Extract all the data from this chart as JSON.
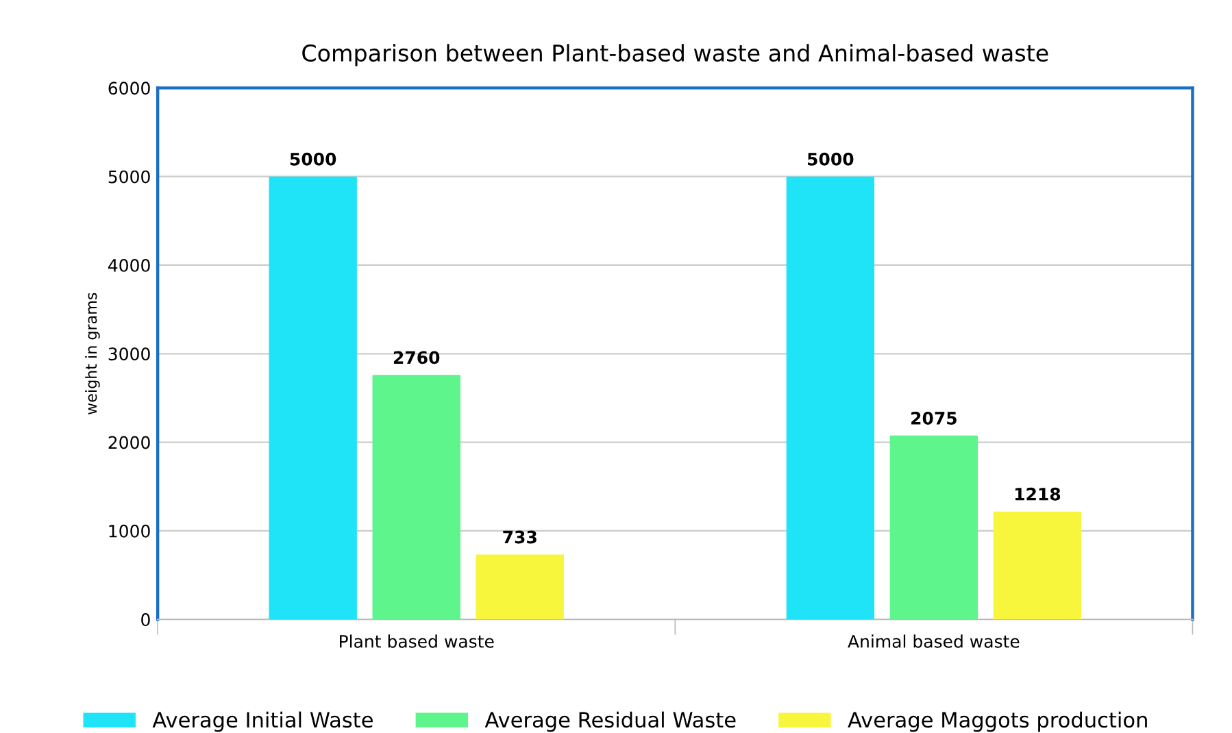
{
  "chart_data": {
    "type": "bar",
    "title": "Comparison between Plant-based waste and Animal-based waste",
    "ylabel": "weight in grams",
    "categories": [
      "Plant based waste",
      "Animal based waste"
    ],
    "series": [
      {
        "name": "Average Initial Waste",
        "color": "#1fe4f7",
        "values": [
          5000,
          5000
        ]
      },
      {
        "name": "Average Residual Waste",
        "color": "#5ef58c",
        "values": [
          2760,
          2075
        ]
      },
      {
        "name": "Average Maggots production",
        "color": "#f7f53c",
        "values": [
          733,
          1218
        ]
      }
    ],
    "ylim": [
      0,
      6000
    ],
    "yticks": [
      0,
      1000,
      2000,
      3000,
      4000,
      5000,
      6000
    ],
    "grid": "y",
    "legend": "bottom",
    "data_labels": true
  }
}
